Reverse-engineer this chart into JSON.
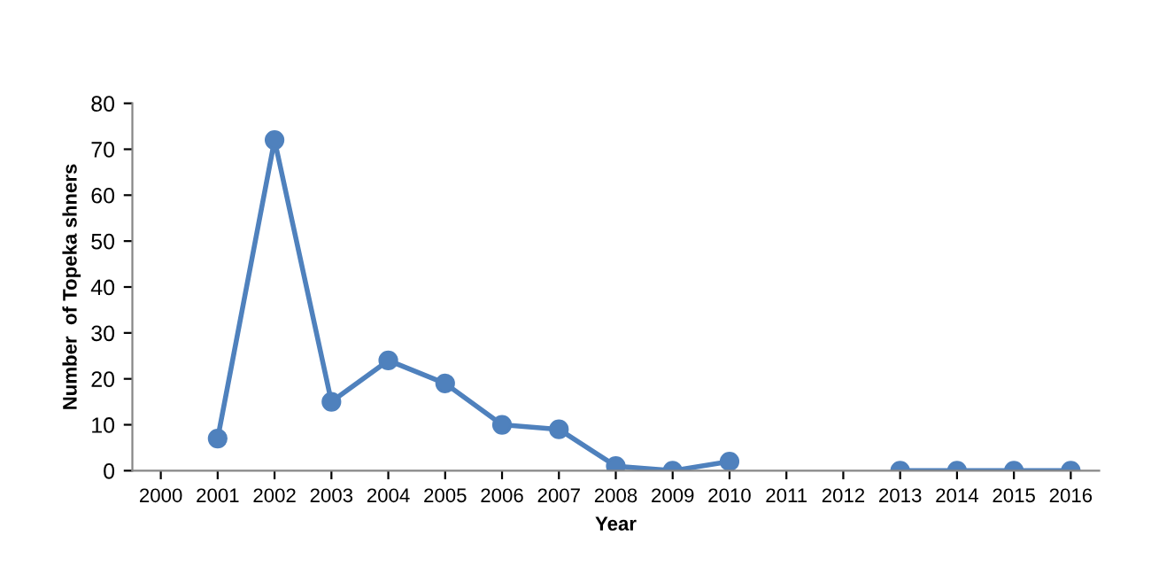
{
  "chart_data": {
    "type": "line",
    "xlabel": "Year",
    "ylabel": "Number  of Topeka shners",
    "categories": [
      "2000",
      "2001",
      "2002",
      "2003",
      "2004",
      "2005",
      "2006",
      "2007",
      "2008",
      "2009",
      "2010",
      "2011",
      "2012",
      "2013",
      "2014",
      "2015",
      "2016"
    ],
    "series": [
      {
        "color": "#4f81bd",
        "values": [
          null,
          7,
          72,
          15,
          24,
          19,
          10,
          9,
          1,
          0,
          2,
          null,
          null,
          0,
          0,
          0,
          0
        ]
      }
    ],
    "ylim": [
      0,
      80
    ],
    "yticks": [
      0,
      10,
      20,
      30,
      40,
      50,
      60,
      70,
      80
    ],
    "grid": false,
    "marker": "circle",
    "line_style": "solid",
    "legend": false
  }
}
